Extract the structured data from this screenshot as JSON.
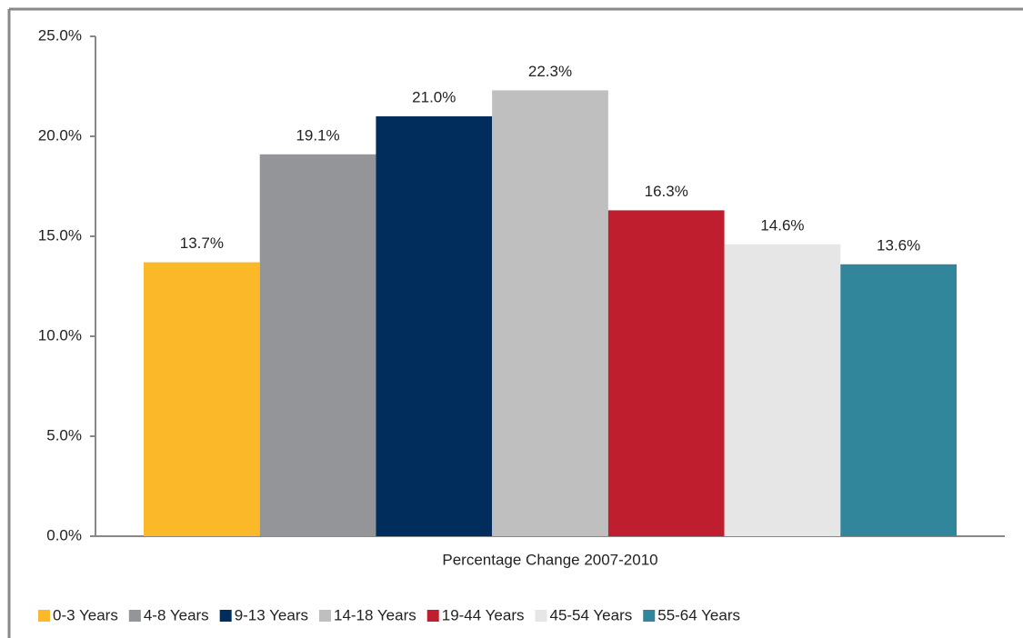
{
  "chart_data": {
    "type": "bar",
    "categories": [
      "Percentage Change 2007-2010"
    ],
    "series": [
      {
        "name": "0-3 Years",
        "color": "#fbb829",
        "values": [
          13.7
        ],
        "value_labels": [
          "13.7%"
        ]
      },
      {
        "name": "4-8 Years",
        "color": "#939598",
        "values": [
          19.1
        ],
        "value_labels": [
          "19.1%"
        ]
      },
      {
        "name": "9-13 Years",
        "color": "#002d5c",
        "values": [
          21.0
        ],
        "value_labels": [
          "21.0%"
        ]
      },
      {
        "name": "14-18 Years",
        "color": "#bfbfbf",
        "values": [
          22.3
        ],
        "value_labels": [
          "22.3%"
        ]
      },
      {
        "name": "19-44 Years",
        "color": "#be1e2d",
        "values": [
          16.3
        ],
        "value_labels": [
          "16.3%"
        ]
      },
      {
        "name": "45-54 Years",
        "color": "#e6e6e6",
        "values": [
          14.6
        ],
        "value_labels": [
          "14.6%"
        ]
      },
      {
        "name": "55-64 Years",
        "color": "#31869b",
        "values": [
          13.6
        ],
        "value_labels": [
          "13.6%"
        ]
      }
    ],
    "ylim": [
      0,
      25
    ],
    "yticks": [
      {
        "value": 0,
        "label": "0.0%"
      },
      {
        "value": 5,
        "label": "5.0%"
      },
      {
        "value": 10,
        "label": "10.0%"
      },
      {
        "value": 15,
        "label": "15.0%"
      },
      {
        "value": 20,
        "label": "20.0%"
      },
      {
        "value": 25,
        "label": "25.0%"
      }
    ],
    "legend": "bottom"
  }
}
